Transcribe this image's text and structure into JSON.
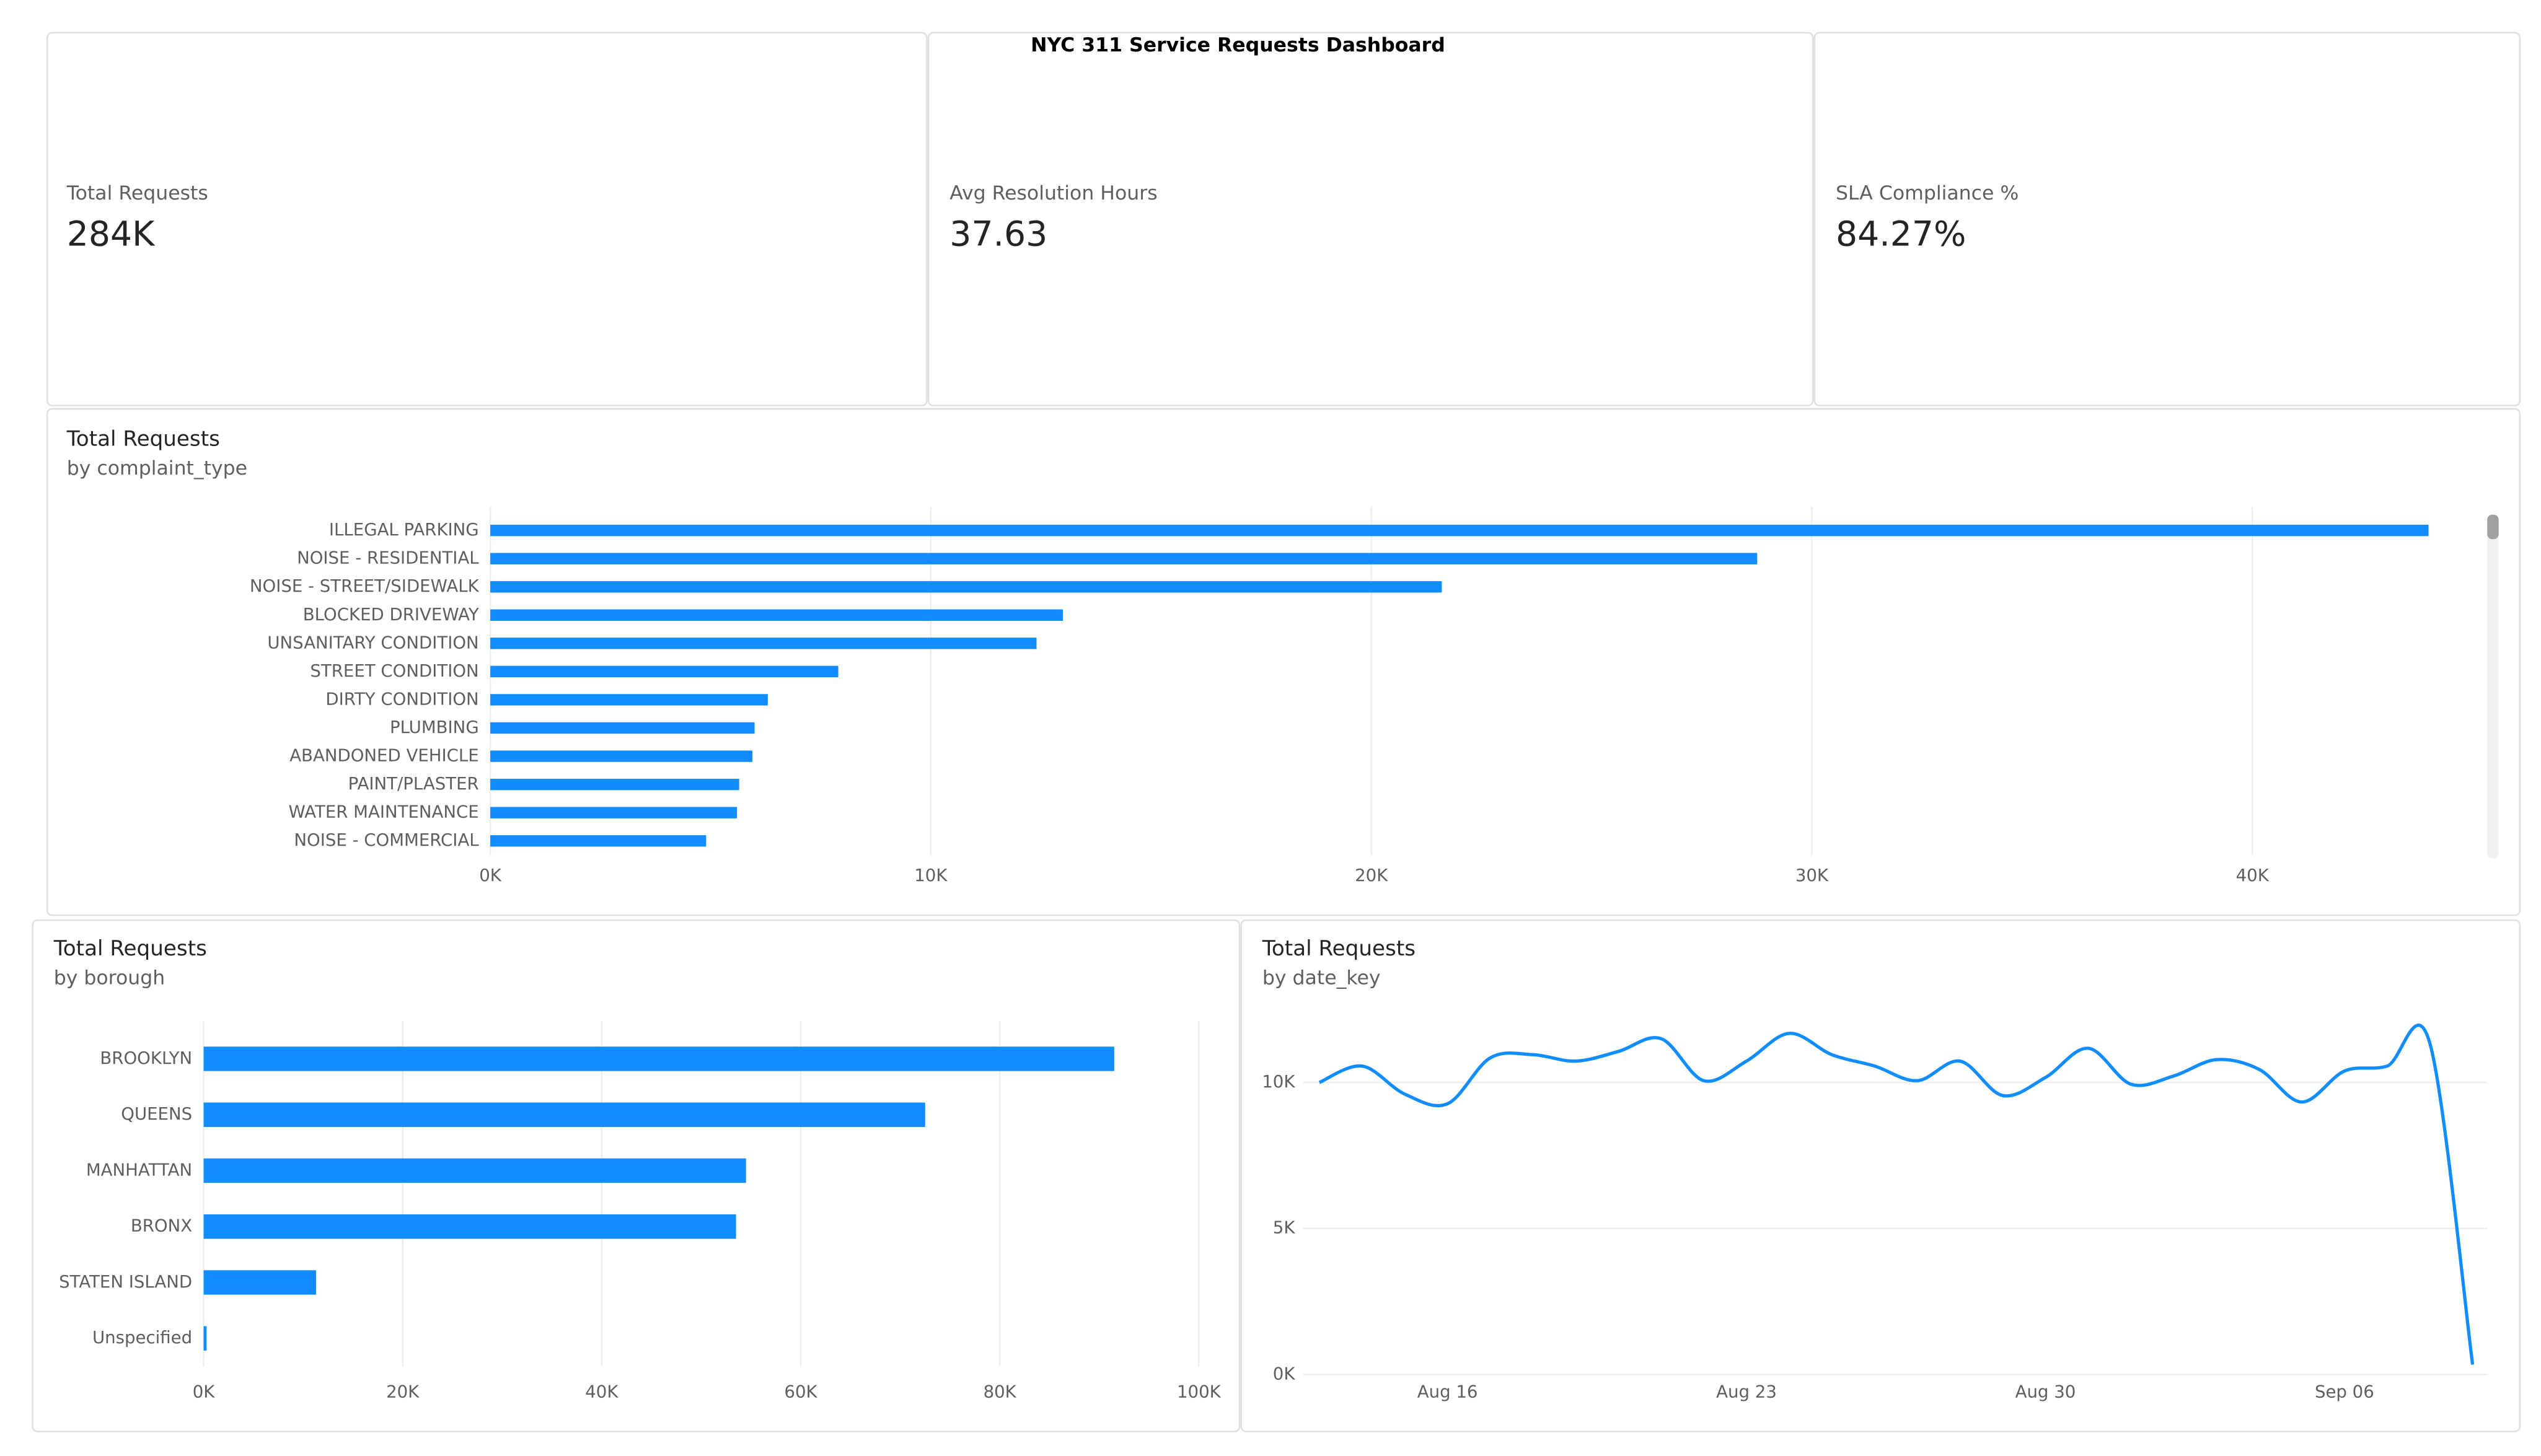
{
  "header": {
    "title": "NYC 311 Service Requests Dashboard"
  },
  "cards": [
    {
      "label": "Total Requests",
      "value": "284K"
    },
    {
      "label": "Avg Resolution Hours",
      "value": "37.63"
    },
    {
      "label": "SLA Compliance %",
      "value": "84.27%"
    }
  ],
  "chart_data": [
    {
      "type": "bar",
      "orientation": "horizontal",
      "title": "Total Requests",
      "subtitle": "by complaint_type",
      "categories": [
        "ILLEGAL PARKING",
        "NOISE - RESIDENTIAL",
        "NOISE - STREET/SIDEWALK",
        "BLOCKED DRIVEWAY",
        "UNSANITARY CONDITION",
        "STREET CONDITION",
        "DIRTY CONDITION",
        "PLUMBING",
        "ABANDONED VEHICLE",
        "PAINT/PLASTER",
        "WATER MAINTENANCE",
        "NOISE - COMMERCIAL"
      ],
      "values": [
        44000,
        28760,
        21600,
        13000,
        12400,
        7900,
        6300,
        6000,
        5950,
        5650,
        5600,
        4900
      ],
      "color": "#118dff",
      "grid": true,
      "xlim": [
        0,
        45000
      ],
      "xticks": [
        {
          "value": 0,
          "label": "0K"
        },
        {
          "value": 10000,
          "label": "10K"
        },
        {
          "value": 20000,
          "label": "20K"
        },
        {
          "value": 30000,
          "label": "30K"
        },
        {
          "value": 40000,
          "label": "40K"
        }
      ]
    },
    {
      "type": "bar",
      "orientation": "horizontal",
      "title": "Total Requests",
      "subtitle": "by borough",
      "categories": [
        "BROOKLYN",
        "QUEENS",
        "MANHATTAN",
        "BRONX",
        "STATEN ISLAND",
        "Unspecified"
      ],
      "values": [
        91500,
        72500,
        54500,
        53500,
        11300,
        300
      ],
      "color": "#118dff",
      "grid": true,
      "xlim": [
        0,
        100000
      ],
      "xticks": [
        {
          "value": 0,
          "label": "0K"
        },
        {
          "value": 20000,
          "label": "20K"
        },
        {
          "value": 40000,
          "label": "40K"
        },
        {
          "value": 60000,
          "label": "60K"
        },
        {
          "value": 80000,
          "label": "80K"
        },
        {
          "value": 100000,
          "label": "100K"
        }
      ]
    },
    {
      "type": "line",
      "title": "Total Requests",
      "subtitle": "by date_key",
      "x": [
        "Aug 13",
        "Aug 14",
        "Aug 15",
        "Aug 16",
        "Aug 17",
        "Aug 18",
        "Aug 19",
        "Aug 20",
        "Aug 21",
        "Aug 22",
        "Aug 23",
        "Aug 24",
        "Aug 25",
        "Aug 26",
        "Aug 27",
        "Aug 28",
        "Aug 29",
        "Aug 30",
        "Aug 31",
        "Sep 01",
        "Sep 02",
        "Sep 03",
        "Sep 04",
        "Sep 05",
        "Sep 06",
        "Sep 07",
        "Sep 08",
        "Sep 09"
      ],
      "values": [
        10000,
        10560,
        9600,
        9270,
        10840,
        10950,
        10730,
        11060,
        11500,
        10060,
        10730,
        11680,
        10950,
        10560,
        10060,
        10730,
        9550,
        10170,
        11170,
        9940,
        10220,
        10780,
        10450,
        9330,
        10390,
        10560,
        11340,
        340
      ],
      "color": "#118dff",
      "grid": true,
      "xticks": [
        "Aug 16",
        "Aug 23",
        "Aug 30",
        "Sep 06"
      ],
      "ylim": [
        0,
        12100
      ],
      "yticks": [
        {
          "value": 0,
          "label": "0K"
        },
        {
          "value": 5000,
          "label": "5K"
        },
        {
          "value": 10000,
          "label": "10K"
        }
      ]
    }
  ]
}
